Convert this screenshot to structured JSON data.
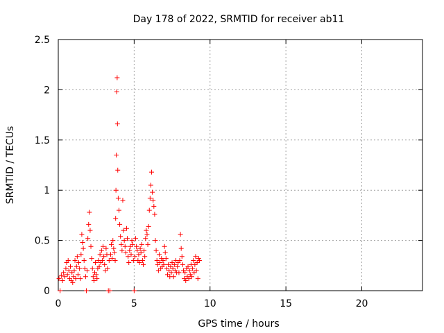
{
  "chart_data": {
    "type": "scatter",
    "title": "Day 178 of 2022, SRMTID for receiver ab11",
    "xlabel": "GPS time / hours",
    "ylabel": "SRMTID / TECUs",
    "xlim": [
      0,
      24
    ],
    "ylim": [
      0,
      2.5
    ],
    "xticks": [
      0,
      5,
      10,
      15,
      20
    ],
    "yticks": [
      0,
      0.5,
      1,
      1.5,
      2,
      2.5
    ],
    "xtick_labels": [
      "0",
      "5",
      "10",
      "15",
      "20"
    ],
    "ytick_labels": [
      "0",
      "0.5",
      "1",
      "1.5",
      "2",
      "2.5"
    ],
    "grid": true,
    "marker": "+",
    "color": "#ff0000",
    "series": [
      {
        "name": "SRMTID",
        "points": [
          [
            0.05,
            0.12
          ],
          [
            0.12,
            0.0
          ],
          [
            0.2,
            0.15
          ],
          [
            0.28,
            0.1
          ],
          [
            0.35,
            0.18
          ],
          [
            0.42,
            0.14
          ],
          [
            0.5,
            0.22
          ],
          [
            0.55,
            0.28
          ],
          [
            0.6,
            0.16
          ],
          [
            0.65,
            0.3
          ],
          [
            0.7,
            0.2
          ],
          [
            0.75,
            0.12
          ],
          [
            0.8,
            0.24
          ],
          [
            0.85,
            0.1
          ],
          [
            0.9,
            0.18
          ],
          [
            0.95,
            0.08
          ],
          [
            1.0,
            0.14
          ],
          [
            1.05,
            0.2
          ],
          [
            1.1,
            0.3
          ],
          [
            1.15,
            0.12
          ],
          [
            1.2,
            0.24
          ],
          [
            1.25,
            0.34
          ],
          [
            1.3,
            0.16
          ],
          [
            1.35,
            0.28
          ],
          [
            1.4,
            0.22
          ],
          [
            1.45,
            0.12
          ],
          [
            1.5,
            0.36
          ],
          [
            1.55,
            0.56
          ],
          [
            1.6,
            0.48
          ],
          [
            1.65,
            0.42
          ],
          [
            1.7,
            0.3
          ],
          [
            1.75,
            0.22
          ],
          [
            1.8,
            0.14
          ],
          [
            1.85,
            0.0
          ],
          [
            1.9,
            0.2
          ],
          [
            1.95,
            0.52
          ],
          [
            2.0,
            0.66
          ],
          [
            2.05,
            0.78
          ],
          [
            2.1,
            0.6
          ],
          [
            2.15,
            0.44
          ],
          [
            2.2,
            0.32
          ],
          [
            2.25,
            0.22
          ],
          [
            2.3,
            0.14
          ],
          [
            2.35,
            0.1
          ],
          [
            2.4,
            0.18
          ],
          [
            2.45,
            0.28
          ],
          [
            2.5,
            0.16
          ],
          [
            2.55,
            0.12
          ],
          [
            2.6,
            0.22
          ],
          [
            2.65,
            0.3
          ],
          [
            2.7,
            0.24
          ],
          [
            2.75,
            0.36
          ],
          [
            2.8,
            0.28
          ],
          [
            2.85,
            0.4
          ],
          [
            2.9,
            0.3
          ],
          [
            2.95,
            0.44
          ],
          [
            3.0,
            0.34
          ],
          [
            3.05,
            0.26
          ],
          [
            3.1,
            0.2
          ],
          [
            3.15,
            0.42
          ],
          [
            3.2,
            0.36
          ],
          [
            3.25,
            0.22
          ],
          [
            3.3,
            0.0
          ],
          [
            3.35,
            0.3
          ],
          [
            3.4,
            0.0
          ],
          [
            3.45,
            0.36
          ],
          [
            3.5,
            0.46
          ],
          [
            3.55,
            0.32
          ],
          [
            3.6,
            0.5
          ],
          [
            3.65,
            0.42
          ],
          [
            3.7,
            0.38
          ],
          [
            3.75,
            0.3
          ],
          [
            3.78,
            0.72
          ],
          [
            3.8,
            1.0
          ],
          [
            3.82,
            1.35
          ],
          [
            3.85,
            1.98
          ],
          [
            3.88,
            2.12
          ],
          [
            3.9,
            1.66
          ],
          [
            3.92,
            1.2
          ],
          [
            3.95,
            0.92
          ],
          [
            4.0,
            0.8
          ],
          [
            4.05,
            0.66
          ],
          [
            4.1,
            0.54
          ],
          [
            4.15,
            0.46
          ],
          [
            4.2,
            0.4
          ],
          [
            4.25,
            0.9
          ],
          [
            4.3,
            0.6
          ],
          [
            4.35,
            0.5
          ],
          [
            4.4,
            0.44
          ],
          [
            4.45,
            0.38
          ],
          [
            4.5,
            0.62
          ],
          [
            4.55,
            0.52
          ],
          [
            4.6,
            0.34
          ],
          [
            4.65,
            0.28
          ],
          [
            4.7,
            0.4
          ],
          [
            4.75,
            0.44
          ],
          [
            4.8,
            0.36
          ],
          [
            4.85,
            0.5
          ],
          [
            4.9,
            0.46
          ],
          [
            4.95,
            0.3
          ],
          [
            5.0,
            0.0
          ],
          [
            5.05,
            0.34
          ],
          [
            5.1,
            0.52
          ],
          [
            5.15,
            0.44
          ],
          [
            5.2,
            0.4
          ],
          [
            5.25,
            0.3
          ],
          [
            5.3,
            0.36
          ],
          [
            5.35,
            0.28
          ],
          [
            5.4,
            0.42
          ],
          [
            5.45,
            0.38
          ],
          [
            5.5,
            0.46
          ],
          [
            5.55,
            0.3
          ],
          [
            5.6,
            0.26
          ],
          [
            5.65,
            0.4
          ],
          [
            5.7,
            0.34
          ],
          [
            5.75,
            0.52
          ],
          [
            5.8,
            0.6
          ],
          [
            5.85,
            0.56
          ],
          [
            5.9,
            0.46
          ],
          [
            5.95,
            0.64
          ],
          [
            6.0,
            0.8
          ],
          [
            6.05,
            0.92
          ],
          [
            6.1,
            1.05
          ],
          [
            6.15,
            1.18
          ],
          [
            6.2,
            0.98
          ],
          [
            6.25,
            0.9
          ],
          [
            6.3,
            0.84
          ],
          [
            6.35,
            0.76
          ],
          [
            6.4,
            0.5
          ],
          [
            6.45,
            0.4
          ],
          [
            6.5,
            0.3
          ],
          [
            6.55,
            0.26
          ],
          [
            6.6,
            0.2
          ],
          [
            6.65,
            0.36
          ],
          [
            6.7,
            0.28
          ],
          [
            6.75,
            0.22
          ],
          [
            6.8,
            0.32
          ],
          [
            6.85,
            0.24
          ],
          [
            6.9,
            0.3
          ],
          [
            6.95,
            0.26
          ],
          [
            7.0,
            0.44
          ],
          [
            7.05,
            0.38
          ],
          [
            7.1,
            0.32
          ],
          [
            7.15,
            0.22
          ],
          [
            7.2,
            0.16
          ],
          [
            7.25,
            0.26
          ],
          [
            7.3,
            0.2
          ],
          [
            7.35,
            0.14
          ],
          [
            7.4,
            0.24
          ],
          [
            7.45,
            0.18
          ],
          [
            7.5,
            0.28
          ],
          [
            7.55,
            0.22
          ],
          [
            7.6,
            0.14
          ],
          [
            7.65,
            0.26
          ],
          [
            7.7,
            0.2
          ],
          [
            7.75,
            0.3
          ],
          [
            7.8,
            0.18
          ],
          [
            7.85,
            0.24
          ],
          [
            7.9,
            0.28
          ],
          [
            7.95,
            0.18
          ],
          [
            8.0,
            0.3
          ],
          [
            8.05,
            0.56
          ],
          [
            8.1,
            0.42
          ],
          [
            8.15,
            0.34
          ],
          [
            8.2,
            0.26
          ],
          [
            8.25,
            0.2
          ],
          [
            8.3,
            0.12
          ],
          [
            8.35,
            0.18
          ],
          [
            8.4,
            0.1
          ],
          [
            8.45,
            0.22
          ],
          [
            8.5,
            0.14
          ],
          [
            8.55,
            0.24
          ],
          [
            8.6,
            0.12
          ],
          [
            8.65,
            0.2
          ],
          [
            8.7,
            0.16
          ],
          [
            8.75,
            0.26
          ],
          [
            8.8,
            0.14
          ],
          [
            8.85,
            0.22
          ],
          [
            8.9,
            0.3
          ],
          [
            8.95,
            0.18
          ],
          [
            9.0,
            0.26
          ],
          [
            9.05,
            0.34
          ],
          [
            9.1,
            0.2
          ],
          [
            9.15,
            0.28
          ],
          [
            9.2,
            0.12
          ],
          [
            9.25,
            0.32
          ],
          [
            9.3,
            0.3
          ]
        ]
      }
    ]
  }
}
